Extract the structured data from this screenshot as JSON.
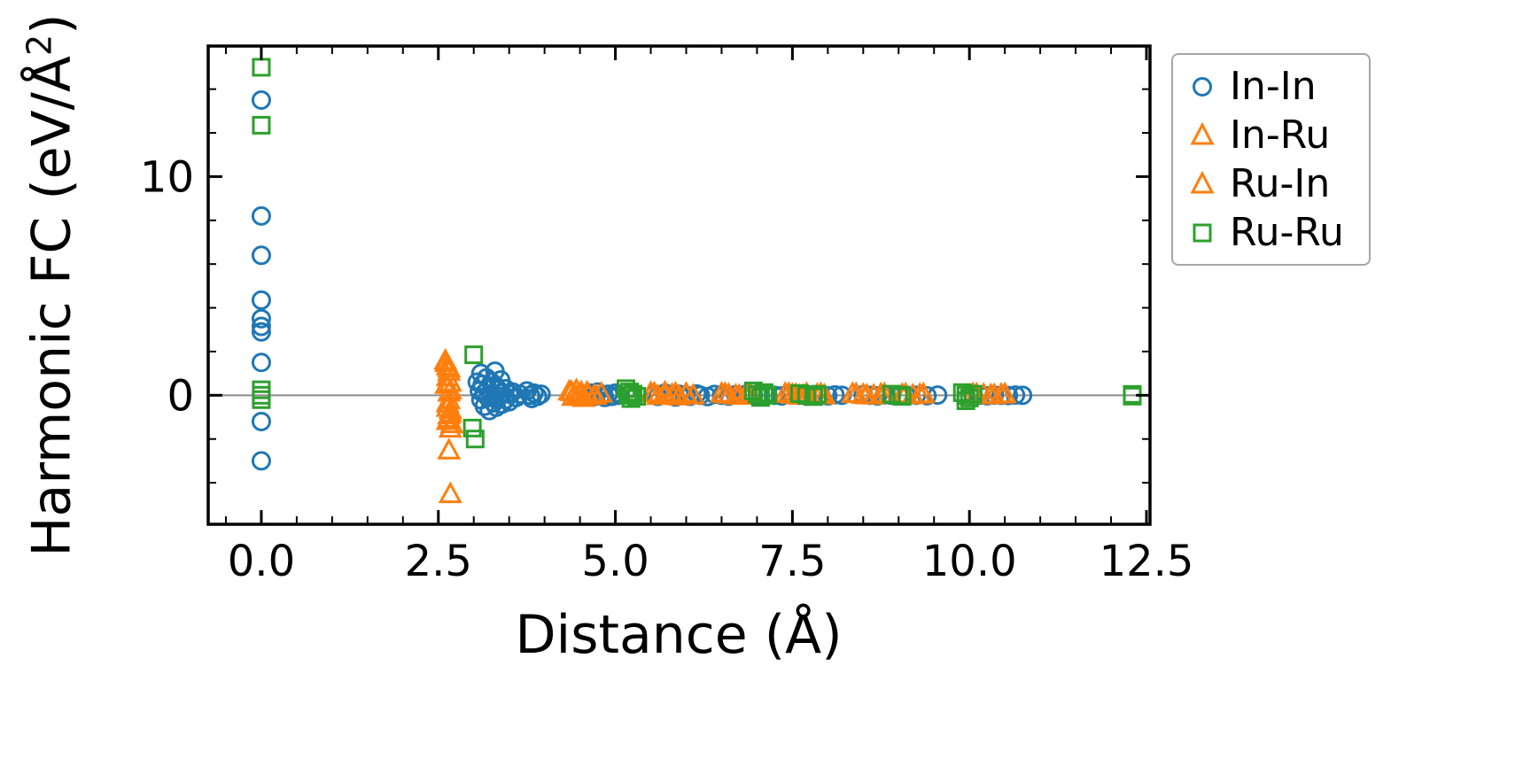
{
  "chart_data": {
    "type": "scatter",
    "title": "",
    "xlabel": "Distance (Å)",
    "ylabel": "Harmonic FC (eV/Å²)",
    "ylabel_parts": {
      "prefix": "Harmonic FC (eV/Å",
      "sup": "2",
      "suffix": ")"
    },
    "xlim": [
      -0.75,
      12.55
    ],
    "ylim": [
      -5.9,
      15.97
    ],
    "xticks": [
      0.0,
      2.5,
      5.0,
      7.5,
      10.0,
      12.5
    ],
    "xtick_labels": [
      "0.0",
      "2.5",
      "5.0",
      "7.5",
      "10.0",
      "12.5"
    ],
    "yticks": [
      0,
      10
    ],
    "ytick_labels": [
      "0",
      "10"
    ],
    "minor_x_step": 0.5,
    "minor_y_step": 2,
    "grid": false,
    "zero_line": true,
    "zero_line_color": "#8c8c8c",
    "legend_position": "outside-top-right",
    "series": [
      {
        "name": "In-In",
        "marker": "circle",
        "color": "#1f77b4",
        "points": [
          [
            0,
            13.5
          ],
          [
            0,
            8.2
          ],
          [
            0,
            6.4
          ],
          [
            0,
            4.35
          ],
          [
            0,
            3.5
          ],
          [
            0,
            3.15
          ],
          [
            0,
            2.9
          ],
          [
            0,
            1.5
          ],
          [
            0,
            -1.2
          ],
          [
            0,
            -3.0
          ],
          [
            3.05,
            0.6
          ],
          [
            3.08,
            0.2
          ],
          [
            3.1,
            1.0
          ],
          [
            3.1,
            -0.2
          ],
          [
            3.12,
            0.5
          ],
          [
            3.15,
            0.1
          ],
          [
            3.15,
            -0.5
          ],
          [
            3.18,
            0.8
          ],
          [
            3.2,
            0.3
          ],
          [
            3.2,
            -0.1
          ],
          [
            3.22,
            -0.7
          ],
          [
            3.25,
            0.6
          ],
          [
            3.25,
            0
          ],
          [
            3.28,
            -0.35
          ],
          [
            3.3,
            1.1
          ],
          [
            3.3,
            0.45
          ],
          [
            3.3,
            -0.15
          ],
          [
            3.32,
            -0.55
          ],
          [
            3.35,
            0.25
          ],
          [
            3.35,
            -0.05
          ],
          [
            3.38,
            0.7
          ],
          [
            3.4,
            0.1
          ],
          [
            3.4,
            -0.4
          ],
          [
            3.45,
            0.3
          ],
          [
            3.45,
            -0.2
          ],
          [
            3.5,
            0.05
          ],
          [
            3.5,
            -0.3
          ],
          [
            3.55,
            0.15
          ],
          [
            3.6,
            -0.1
          ],
          [
            3.65,
            0.05
          ],
          [
            3.75,
            0.2
          ],
          [
            3.8,
            0
          ],
          [
            3.82,
            -0.15
          ],
          [
            3.85,
            0.1
          ],
          [
            3.9,
            -0.05
          ],
          [
            3.95,
            0.05
          ],
          [
            4.65,
            0.1
          ],
          [
            4.7,
            -0.05
          ],
          [
            4.75,
            0.15
          ],
          [
            4.8,
            0
          ],
          [
            4.85,
            -0.1
          ],
          [
            4.9,
            0.05
          ],
          [
            4.95,
            -0.05
          ],
          [
            5.0,
            0.1
          ],
          [
            5.05,
            0
          ],
          [
            5.55,
            0.05
          ],
          [
            5.6,
            -0.05
          ],
          [
            5.7,
            0.1
          ],
          [
            5.75,
            0
          ],
          [
            5.85,
            -0.08
          ],
          [
            5.9,
            0.05
          ],
          [
            6.0,
            0
          ],
          [
            6.05,
            -0.05
          ],
          [
            6.15,
            0.06
          ],
          [
            6.2,
            0
          ],
          [
            6.3,
            -0.06
          ],
          [
            6.4,
            0.04
          ],
          [
            6.5,
            0
          ],
          [
            6.6,
            -0.04
          ],
          [
            6.7,
            0.03
          ],
          [
            6.85,
            0.05
          ],
          [
            6.95,
            0
          ],
          [
            7.05,
            -0.05
          ],
          [
            7.15,
            0.04
          ],
          [
            7.25,
            0
          ],
          [
            7.35,
            -0.03
          ],
          [
            7.5,
            0.04
          ],
          [
            7.6,
            0
          ],
          [
            7.7,
            -0.04
          ],
          [
            7.8,
            0.03
          ],
          [
            7.9,
            0
          ],
          [
            8.0,
            -0.03
          ],
          [
            8.1,
            0.02
          ],
          [
            8.2,
            0
          ],
          [
            8.5,
            0.03
          ],
          [
            8.6,
            0
          ],
          [
            8.7,
            -0.03
          ],
          [
            8.8,
            0.02
          ],
          [
            8.9,
            0
          ],
          [
            9.0,
            -0.02
          ],
          [
            9.1,
            0.02
          ],
          [
            9.25,
            0
          ],
          [
            9.4,
            -0.02
          ],
          [
            9.55,
            0.01
          ],
          [
            10.05,
            0.02
          ],
          [
            10.15,
            0
          ],
          [
            10.25,
            -0.02
          ],
          [
            10.35,
            0.01
          ],
          [
            10.45,
            0
          ],
          [
            10.55,
            -0.01
          ],
          [
            10.65,
            0.01
          ],
          [
            10.75,
            0
          ]
        ]
      },
      {
        "name": "In-Ru",
        "marker": "triangle",
        "color": "#ff7f0e",
        "points": [
          [
            2.6,
            1.55
          ],
          [
            2.63,
            1.3
          ],
          [
            2.65,
            1.05
          ],
          [
            2.61,
            0.45
          ],
          [
            2.67,
            0.2
          ],
          [
            2.65,
            -0.25
          ],
          [
            2.63,
            -0.6
          ],
          [
            2.67,
            -0.85
          ],
          [
            2.65,
            -1.1
          ],
          [
            2.69,
            -1.35
          ],
          [
            2.65,
            -2.55
          ],
          [
            2.67,
            -4.55
          ],
          [
            4.35,
            0.15
          ],
          [
            4.4,
            -0.1
          ],
          [
            4.45,
            0.2
          ],
          [
            4.5,
            0
          ],
          [
            4.55,
            -0.15
          ],
          [
            4.6,
            0.1
          ],
          [
            4.7,
            -0.05
          ],
          [
            4.8,
            0.05
          ],
          [
            5.5,
            0.08
          ],
          [
            5.6,
            -0.06
          ],
          [
            5.7,
            0.1
          ],
          [
            5.8,
            0
          ],
          [
            5.9,
            -0.08
          ],
          [
            6.0,
            0.05
          ],
          [
            6.1,
            -0.04
          ],
          [
            6.5,
            0.05
          ],
          [
            6.6,
            0
          ],
          [
            6.75,
            -0.05
          ],
          [
            6.9,
            0.04
          ],
          [
            7.4,
            0.05
          ],
          [
            7.5,
            0
          ],
          [
            7.6,
            -0.05
          ],
          [
            7.7,
            0.04
          ],
          [
            7.85,
            0
          ],
          [
            7.95,
            -0.03
          ],
          [
            8.35,
            0.04
          ],
          [
            8.5,
            0
          ],
          [
            8.65,
            -0.04
          ],
          [
            8.8,
            0.03
          ],
          [
            9.05,
            0
          ],
          [
            9.2,
            -0.03
          ],
          [
            9.35,
            0.02
          ],
          [
            10.05,
            0.03
          ],
          [
            10.2,
            0
          ],
          [
            10.35,
            -0.02
          ],
          [
            10.5,
            0.02
          ]
        ]
      },
      {
        "name": "Ru-In",
        "marker": "triangle",
        "color": "#ff7f0e",
        "points": [
          [
            2.61,
            1.45
          ],
          [
            2.65,
            1.2
          ],
          [
            2.63,
            0.8
          ],
          [
            2.67,
            0.55
          ],
          [
            2.65,
            0.1
          ],
          [
            2.63,
            -0.4
          ],
          [
            2.67,
            -0.7
          ],
          [
            2.65,
            -0.95
          ],
          [
            2.63,
            -1.2
          ],
          [
            2.67,
            -1.55
          ],
          [
            4.38,
            0.12
          ],
          [
            4.45,
            -0.08
          ],
          [
            4.52,
            0.1
          ],
          [
            4.62,
            0
          ],
          [
            4.72,
            -0.06
          ],
          [
            5.55,
            0.06
          ],
          [
            5.7,
            -0.05
          ],
          [
            5.85,
            0.05
          ],
          [
            6.0,
            0
          ],
          [
            6.55,
            0.04
          ],
          [
            6.7,
            -0.04
          ],
          [
            6.85,
            0.03
          ],
          [
            7.45,
            0.04
          ],
          [
            7.55,
            0
          ],
          [
            7.65,
            -0.04
          ],
          [
            7.9,
            0.03
          ],
          [
            8.4,
            0.03
          ],
          [
            8.55,
            -0.03
          ],
          [
            8.75,
            0.02
          ],
          [
            9.1,
            0.02
          ],
          [
            9.3,
            0
          ],
          [
            10.1,
            0.02
          ],
          [
            10.3,
            -0.02
          ],
          [
            10.45,
            0.01
          ]
        ]
      },
      {
        "name": "Ru-Ru",
        "marker": "square",
        "color": "#2ca02c",
        "points": [
          [
            0,
            15.0
          ],
          [
            0,
            12.35
          ],
          [
            0,
            0.25
          ],
          [
            0,
            0
          ],
          [
            0,
            -0.2
          ],
          [
            3.0,
            1.85
          ],
          [
            2.98,
            -1.5
          ],
          [
            3.02,
            -2.0
          ],
          [
            5.15,
            0.3
          ],
          [
            5.2,
            0.15
          ],
          [
            5.18,
            0
          ],
          [
            5.22,
            -0.15
          ],
          [
            5.25,
            0.05
          ],
          [
            5.3,
            -0.05
          ],
          [
            6.95,
            0.2
          ],
          [
            7.0,
            0.05
          ],
          [
            7.05,
            -0.1
          ],
          [
            7.1,
            0.12
          ],
          [
            7.15,
            0
          ],
          [
            7.6,
            0.08
          ],
          [
            7.7,
            0
          ],
          [
            7.8,
            -0.06
          ],
          [
            7.85,
            0.04
          ],
          [
            8.9,
            0.05
          ],
          [
            9.0,
            0
          ],
          [
            9.05,
            -0.05
          ],
          [
            9.9,
            0.12
          ],
          [
            9.95,
            0
          ],
          [
            10.0,
            -0.12
          ],
          [
            10.05,
            0.05
          ],
          [
            9.95,
            -0.25
          ],
          [
            12.3,
            0.04
          ],
          [
            12.3,
            -0.04
          ]
        ]
      }
    ]
  }
}
